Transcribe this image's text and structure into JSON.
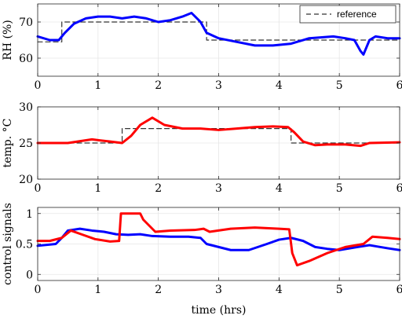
{
  "chart_data": [
    {
      "type": "line",
      "ylabel": "RH (%)",
      "xlim": [
        0,
        6
      ],
      "ylim": [
        55,
        75
      ],
      "xticks": [
        0,
        1,
        2,
        3,
        4,
        5,
        6
      ],
      "yticks": [
        60,
        70
      ],
      "legend": {
        "placement": "top-right",
        "entries": [
          "reference"
        ]
      },
      "grid": true,
      "series": [
        {
          "name": "reference",
          "style": "dashed",
          "color": "#333333",
          "x": [
            0,
            0.4,
            0.4,
            2.8,
            2.8,
            6
          ],
          "y": [
            64.5,
            64.5,
            70,
            70,
            65,
            65
          ]
        },
        {
          "color": "#0000ff",
          "x": [
            0,
            0.2,
            0.35,
            0.45,
            0.6,
            0.8,
            1.0,
            1.2,
            1.4,
            1.6,
            1.8,
            2.0,
            2.2,
            2.4,
            2.55,
            2.7,
            2.8,
            3.0,
            3.3,
            3.6,
            3.9,
            4.2,
            4.5,
            4.9,
            5.1,
            5.25,
            5.35,
            5.4,
            5.5,
            5.6,
            5.8,
            6.0
          ],
          "y": [
            66,
            65,
            65,
            67,
            69.5,
            71,
            71.5,
            71.5,
            71,
            71.5,
            71,
            70,
            70.5,
            71.5,
            72.5,
            70,
            67,
            65.5,
            64.5,
            63.5,
            63.5,
            64,
            65.5,
            66,
            65.5,
            65,
            62,
            61,
            65,
            66,
            65.5,
            65.5
          ]
        }
      ]
    },
    {
      "type": "line",
      "ylabel": "temp. °C",
      "xlim": [
        0,
        6
      ],
      "ylim": [
        20,
        30
      ],
      "xticks": [
        0,
        1,
        2,
        3,
        4,
        5,
        6
      ],
      "yticks": [
        20,
        25,
        30
      ],
      "grid": true,
      "series": [
        {
          "name": "reference",
          "style": "dashed",
          "color": "#333333",
          "x": [
            0,
            1.4,
            1.4,
            4.2,
            4.2,
            6
          ],
          "y": [
            25,
            25,
            27,
            27,
            25,
            25
          ]
        },
        {
          "color": "#ff0000",
          "x": [
            0,
            0.5,
            0.9,
            1.2,
            1.4,
            1.55,
            1.7,
            1.9,
            2.1,
            2.4,
            2.7,
            3.0,
            3.3,
            3.6,
            3.9,
            4.15,
            4.25,
            4.4,
            4.6,
            4.8,
            5.1,
            5.35,
            5.5,
            6.0
          ],
          "y": [
            25,
            25,
            25.5,
            25.2,
            25,
            26,
            27.5,
            28.5,
            27.5,
            27,
            27,
            26.8,
            27,
            27.2,
            27.3,
            27.2,
            26.5,
            25.2,
            24.7,
            24.8,
            24.8,
            24.6,
            25,
            25.1
          ]
        }
      ]
    },
    {
      "type": "line",
      "ylabel": "control signals",
      "xlabel": "time (hrs)",
      "xlim": [
        0,
        6
      ],
      "ylim": [
        -0.1,
        1.1
      ],
      "xticks": [
        0,
        1,
        2,
        3,
        4,
        5,
        6
      ],
      "yticks": [
        0,
        0.5,
        1
      ],
      "grid": true,
      "series": [
        {
          "color": "#0000ff",
          "x": [
            0,
            0.3,
            0.4,
            0.5,
            0.7,
            0.9,
            1.1,
            1.3,
            1.5,
            1.7,
            1.9,
            2.2,
            2.5,
            2.7,
            2.8,
            3.0,
            3.2,
            3.5,
            3.8,
            4.0,
            4.2,
            4.4,
            4.6,
            4.8,
            5.0,
            5.3,
            5.5,
            5.8,
            6.0
          ],
          "y": [
            0.47,
            0.5,
            0.6,
            0.72,
            0.75,
            0.72,
            0.7,
            0.66,
            0.65,
            0.66,
            0.63,
            0.62,
            0.62,
            0.6,
            0.5,
            0.45,
            0.4,
            0.4,
            0.5,
            0.57,
            0.6,
            0.55,
            0.45,
            0.42,
            0.4,
            0.45,
            0.48,
            0.43,
            0.4
          ]
        },
        {
          "color": "#ff0000",
          "x": [
            0,
            0.2,
            0.4,
            0.55,
            0.75,
            0.95,
            1.2,
            1.35,
            1.38,
            1.7,
            1.75,
            1.95,
            2.2,
            2.6,
            2.75,
            2.85,
            3.2,
            3.6,
            4.0,
            4.17,
            4.22,
            4.3,
            4.5,
            4.8,
            5.1,
            5.4,
            5.55,
            5.8,
            6.0
          ],
          "y": [
            0.55,
            0.55,
            0.6,
            0.72,
            0.65,
            0.58,
            0.54,
            0.55,
            1.0,
            1.0,
            0.9,
            0.7,
            0.72,
            0.73,
            0.75,
            0.7,
            0.75,
            0.77,
            0.75,
            0.74,
            0.35,
            0.15,
            0.22,
            0.35,
            0.45,
            0.5,
            0.62,
            0.6,
            0.58
          ]
        }
      ]
    }
  ]
}
